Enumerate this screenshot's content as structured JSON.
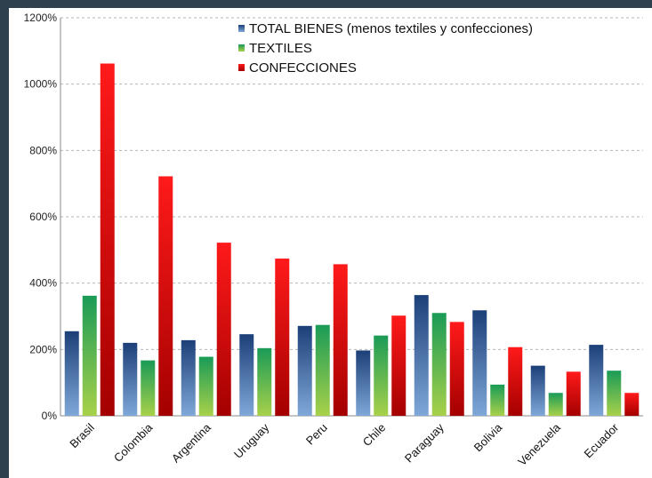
{
  "chart_data": {
    "type": "bar",
    "categories": [
      "Brasil",
      "Colombia",
      "Argentina",
      "Uruguay",
      "Peru",
      "Chile",
      "Paraguay",
      "Bolivia",
      "Venezuela",
      "Ecuador"
    ],
    "series": [
      {
        "name": "TOTAL BIENES (menos textiles y confecciones)",
        "values": [
          255,
          220,
          228,
          246,
          271,
          197,
          364,
          318,
          151,
          214
        ],
        "color": "#1c3f78",
        "color_light": "#7fa8d8"
      },
      {
        "name": "TEXTILES",
        "values": [
          362,
          167,
          178,
          204,
          274,
          242,
          310,
          94,
          69,
          136
        ],
        "color": "#1a9b57",
        "color_light": "#a8d14a"
      },
      {
        "name": "CONFECCIONES",
        "values": [
          1062,
          722,
          522,
          474,
          457,
          302,
          283,
          207,
          133,
          69
        ],
        "color": "#ff1a1a",
        "color_light": "#a40000"
      }
    ],
    "ylim": [
      0,
      1200
    ],
    "yticks": [
      0,
      200,
      400,
      600,
      800,
      1000,
      1200
    ],
    "ytick_labels": [
      "0%",
      "200%",
      "400%",
      "600%",
      "800%",
      "1000%",
      "1200%"
    ],
    "grid": true,
    "legend_position": "top"
  }
}
